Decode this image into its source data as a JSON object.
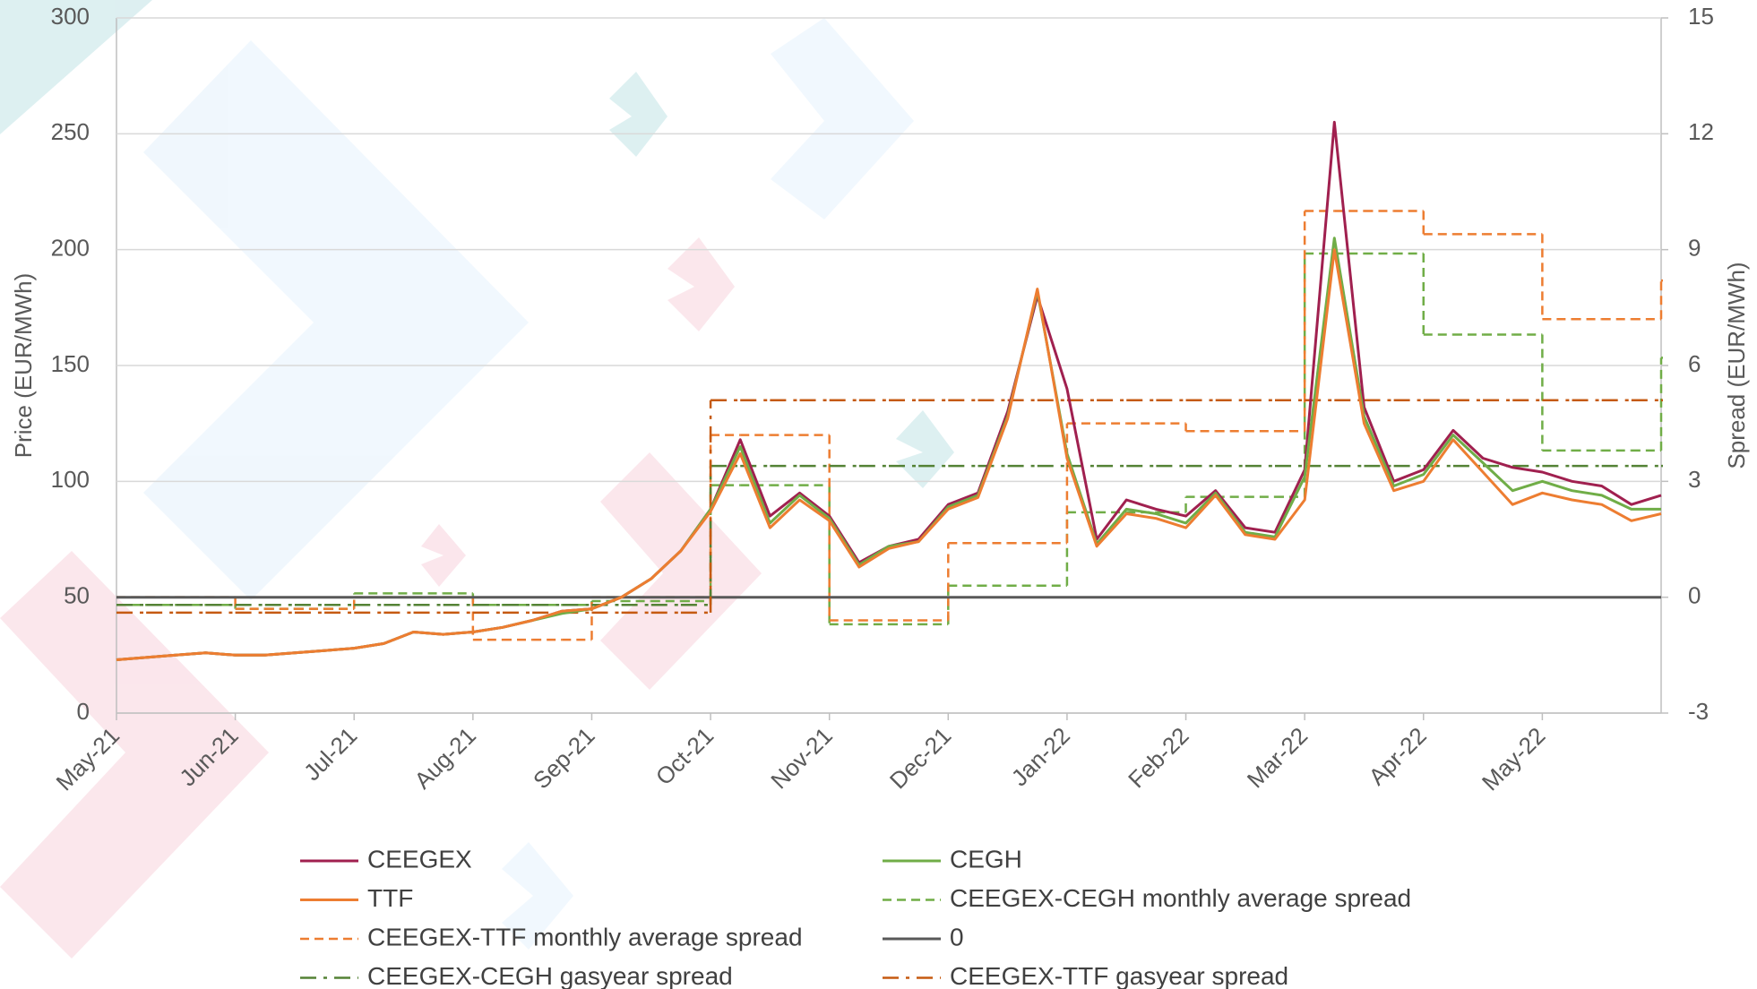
{
  "chart_data": {
    "type": "line",
    "y_label": "Price (EUR/MWh)",
    "y2_label": "Spread (EUR/MWh)",
    "categories": [
      "May-21",
      null,
      null,
      null,
      "Jun-21",
      null,
      null,
      null,
      "Jul-21",
      null,
      null,
      null,
      "Aug-21",
      null,
      null,
      null,
      "Sep-21",
      null,
      null,
      null,
      "Oct-21",
      null,
      null,
      null,
      "Nov-21",
      null,
      null,
      null,
      "Dec-21",
      null,
      null,
      null,
      "Jan-22",
      null,
      null,
      null,
      "Feb-22",
      null,
      null,
      null,
      "Mar-22",
      null,
      null,
      null,
      "Apr-22",
      null,
      null,
      null,
      "May-22",
      null,
      null,
      null,
      null
    ],
    "ylim": [
      0,
      300
    ],
    "yticks": [
      0,
      50,
      100,
      150,
      200,
      250,
      300
    ],
    "y2lim": [
      -3,
      15
    ],
    "y2ticks": [
      -3,
      0,
      3,
      6,
      9,
      12,
      15
    ],
    "grid": true,
    "series": [
      {
        "name": "CEEGEX",
        "color": "#a0204f",
        "style": "solid",
        "step": false,
        "values": [
          23,
          24,
          25,
          26,
          25,
          25,
          26,
          27,
          28,
          30,
          35,
          34,
          35,
          37,
          40,
          44,
          45,
          50,
          58,
          70,
          88,
          118,
          85,
          95,
          85,
          65,
          72,
          75,
          90,
          95,
          130,
          180,
          140,
          75,
          92,
          88,
          85,
          96,
          80,
          78,
          105,
          255,
          132,
          100,
          105,
          122,
          110,
          106,
          104,
          100,
          98,
          90,
          94
        ]
      },
      {
        "name": "CEGH",
        "color": "#70ad47",
        "style": "solid",
        "step": false,
        "values": [
          23,
          24,
          25,
          26,
          25,
          25,
          26,
          27,
          28,
          30,
          35,
          34,
          35,
          37,
          40,
          43,
          45,
          50,
          58,
          70,
          88,
          115,
          82,
          94,
          84,
          64,
          72,
          74,
          89,
          94,
          128,
          182,
          112,
          73,
          88,
          86,
          82,
          95,
          78,
          76,
          102,
          205,
          128,
          98,
          103,
          120,
          108,
          96,
          100,
          96,
          94,
          88,
          88
        ]
      },
      {
        "name": "TTF",
        "color": "#ed7d31",
        "style": "solid",
        "step": false,
        "values": [
          23,
          24,
          25,
          26,
          25,
          25,
          26,
          27,
          28,
          30,
          35,
          34,
          35,
          37,
          40,
          44,
          45,
          50,
          58,
          70,
          87,
          112,
          80,
          92,
          83,
          63,
          71,
          74,
          88,
          93,
          127,
          183,
          110,
          72,
          86,
          84,
          80,
          94,
          77,
          75,
          92,
          200,
          125,
          96,
          100,
          118,
          104,
          90,
          95,
          92,
          90,
          83,
          86
        ]
      },
      {
        "name": "CEEGEX-CEGH monthly average spread",
        "color": "#70ad47",
        "style": "dashed",
        "step": true,
        "axis": "y2",
        "values": [
          -0.2,
          -0.2,
          -0.2,
          -0.2,
          -0.3,
          -0.3,
          -0.3,
          -0.3,
          0.1,
          0.1,
          0.1,
          0.1,
          -0.2,
          -0.2,
          -0.2,
          -0.2,
          -0.1,
          -0.1,
          -0.1,
          -0.1,
          2.9,
          2.9,
          2.9,
          2.9,
          -0.7,
          -0.7,
          -0.7,
          -0.7,
          0.3,
          0.3,
          0.3,
          0.3,
          2.2,
          2.2,
          2.2,
          2.2,
          2.6,
          2.6,
          2.6,
          2.6,
          8.9,
          8.9,
          8.9,
          8.9,
          6.8,
          6.8,
          6.8,
          6.8,
          3.8,
          3.8,
          3.8,
          3.8,
          6.2
        ]
      },
      {
        "name": "CEEGEX-TTF monthly average spread",
        "color": "#ed7d31",
        "style": "dashed",
        "step": true,
        "axis": "y2",
        "values": [
          0,
          0,
          0,
          0,
          -0.3,
          -0.3,
          -0.3,
          -0.3,
          0,
          0,
          0,
          0,
          -1.1,
          -1.1,
          -1.1,
          -1.1,
          0,
          0,
          0,
          0,
          4.2,
          4.2,
          4.2,
          4.2,
          -0.6,
          -0.6,
          -0.6,
          -0.6,
          1.4,
          1.4,
          1.4,
          1.4,
          4.5,
          4.5,
          4.5,
          4.5,
          4.3,
          4.3,
          4.3,
          4.3,
          10,
          10,
          10,
          10,
          9.4,
          9.4,
          9.4,
          9.4,
          7.2,
          7.2,
          7.2,
          7.2,
          8.2
        ]
      },
      {
        "name": "0",
        "color": "#595959",
        "style": "solid",
        "step": false,
        "axis": "y2",
        "values": [
          0,
          0,
          0,
          0,
          0,
          0,
          0,
          0,
          0,
          0,
          0,
          0,
          0,
          0,
          0,
          0,
          0,
          0,
          0,
          0,
          0,
          0,
          0,
          0,
          0,
          0,
          0,
          0,
          0,
          0,
          0,
          0,
          0,
          0,
          0,
          0,
          0,
          0,
          0,
          0,
          0,
          0,
          0,
          0,
          0,
          0,
          0,
          0,
          0,
          0,
          0,
          0,
          0
        ]
      },
      {
        "name": "CEEGEX-CEGH gasyear spread",
        "color": "#548235",
        "style": "dashdot",
        "step": true,
        "axis": "y2",
        "values": [
          -0.2,
          -0.2,
          -0.2,
          -0.2,
          -0.2,
          -0.2,
          -0.2,
          -0.2,
          -0.2,
          -0.2,
          -0.2,
          -0.2,
          -0.2,
          -0.2,
          -0.2,
          -0.2,
          -0.2,
          -0.2,
          -0.2,
          -0.2,
          3.4,
          3.4,
          3.4,
          3.4,
          3.4,
          3.4,
          3.4,
          3.4,
          3.4,
          3.4,
          3.4,
          3.4,
          3.4,
          3.4,
          3.4,
          3.4,
          3.4,
          3.4,
          3.4,
          3.4,
          3.4,
          3.4,
          3.4,
          3.4,
          3.4,
          3.4,
          3.4,
          3.4,
          3.4,
          3.4,
          3.4,
          3.4,
          3.4
        ]
      },
      {
        "name": "CEEGEX-TTF gasyear spread",
        "color": "#c55a11",
        "style": "dashdot",
        "step": true,
        "axis": "y2",
        "values": [
          -0.4,
          -0.4,
          -0.4,
          -0.4,
          -0.4,
          -0.4,
          -0.4,
          -0.4,
          -0.4,
          -0.4,
          -0.4,
          -0.4,
          -0.4,
          -0.4,
          -0.4,
          -0.4,
          -0.4,
          -0.4,
          -0.4,
          -0.4,
          5.1,
          5.1,
          5.1,
          5.1,
          5.1,
          5.1,
          5.1,
          5.1,
          5.1,
          5.1,
          5.1,
          5.1,
          5.1,
          5.1,
          5.1,
          5.1,
          5.1,
          5.1,
          5.1,
          5.1,
          5.1,
          5.1,
          5.1,
          5.1,
          5.1,
          5.1,
          5.1,
          5.1,
          5.1,
          5.1,
          5.1,
          5.1,
          5.1
        ]
      }
    ]
  }
}
